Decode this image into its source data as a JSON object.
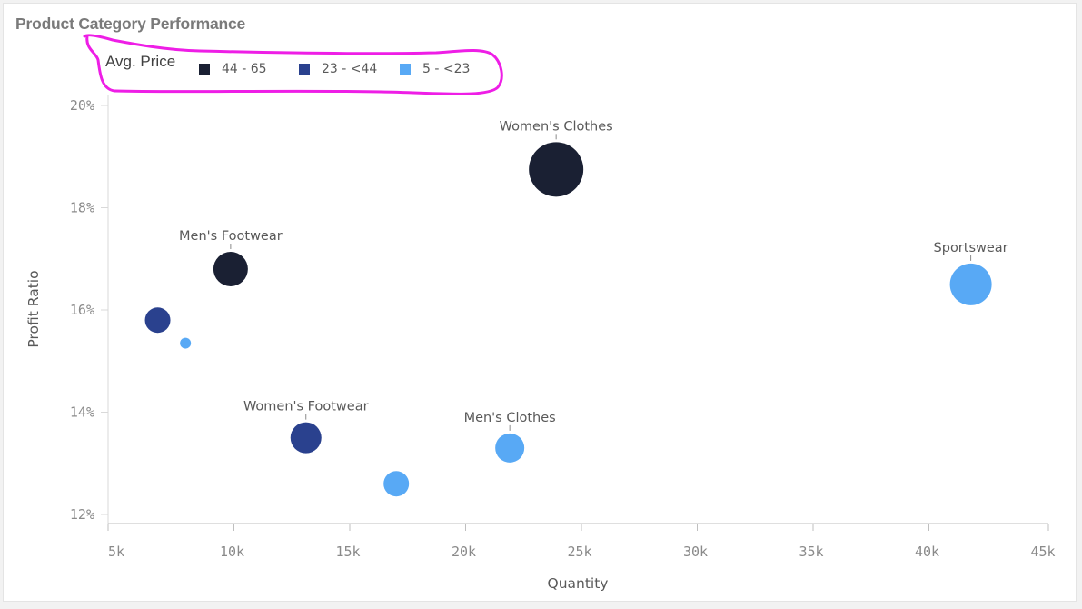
{
  "title": "Product Category Performance",
  "legend": {
    "title": "Avg. Price",
    "items": [
      {
        "label": "44 - 65",
        "color": "#1a2033"
      },
      {
        "label": "23 - <44",
        "color": "#2a418e"
      },
      {
        "label": "5 - <23",
        "color": "#58a9f5"
      }
    ]
  },
  "annotation_color": "#ee1ee6",
  "chart_data": {
    "type": "scatter",
    "title": "Product Category Performance",
    "xlabel": "Quantity",
    "ylabel": "Profit Ratio",
    "xlim": [
      5000,
      45000
    ],
    "ylim": [
      12,
      20.5
    ],
    "x_ticks": [
      5000,
      10000,
      15000,
      20000,
      25000,
      30000,
      35000,
      40000,
      45000
    ],
    "x_tick_labels": [
      "5k",
      "10k",
      "15k",
      "20k",
      "25k",
      "30k",
      "35k",
      "40k",
      "45k"
    ],
    "y_ticks": [
      12,
      14,
      16,
      18,
      20
    ],
    "y_tick_labels": [
      "12%",
      "14%",
      "16%",
      "18%",
      "20%"
    ],
    "grid": false,
    "legend_position": "top-left",
    "size_scale": "relative",
    "points": [
      {
        "label": "Women's Clothes",
        "x": 24300,
        "y": 18.75,
        "size": 30,
        "group": "44 - 65"
      },
      {
        "label": "Men's Footwear",
        "x": 10250,
        "y": 16.8,
        "size": 19,
        "group": "44 - 65"
      },
      {
        "label": "",
        "x": 7100,
        "y": 15.8,
        "size": 14,
        "group": "23 - <44"
      },
      {
        "label": "",
        "x": 8300,
        "y": 15.35,
        "size": 6,
        "group": "5 - <23"
      },
      {
        "label": "Sportswear",
        "x": 42200,
        "y": 16.5,
        "size": 23,
        "group": "5 - <23"
      },
      {
        "label": "Women's Footwear",
        "x": 13500,
        "y": 13.5,
        "size": 17,
        "group": "23 - <44"
      },
      {
        "label": "Men's Clothes",
        "x": 22300,
        "y": 13.3,
        "size": 16,
        "group": "5 - <23"
      },
      {
        "label": "",
        "x": 17400,
        "y": 12.6,
        "size": 14,
        "group": "5 - <23"
      }
    ]
  }
}
